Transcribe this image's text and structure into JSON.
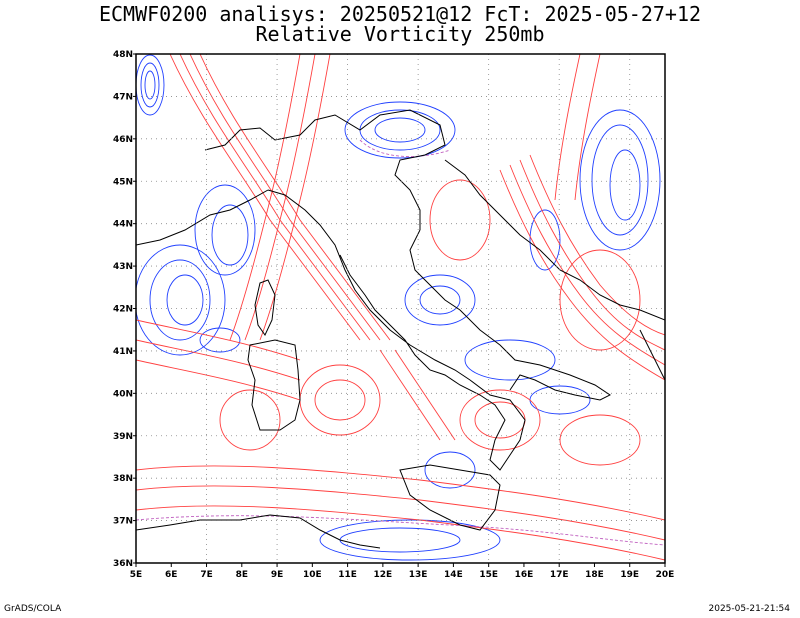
{
  "title": {
    "line1": "ECMWF0200 analisys: 20250521@12 FcT: 2025-05-27+12",
    "line2": "Relative Vorticity 250mb"
  },
  "footer": {
    "left": "GrADS/COLA",
    "right": "2025-05-21-21:54"
  },
  "map": {
    "lon_labels": [
      "5E",
      "6E",
      "7E",
      "8E",
      "9E",
      "10E",
      "11E",
      "12E",
      "13E",
      "14E",
      "15E",
      "16E",
      "17E",
      "18E",
      "19E",
      "20E"
    ],
    "lat_labels": [
      "48N",
      "47N",
      "46N",
      "45N",
      "44N",
      "43N",
      "42N",
      "41N",
      "40N",
      "39N",
      "38N",
      "37N",
      "36N"
    ],
    "colors": {
      "positive": "#ff4040",
      "negative": "#2040ff",
      "zero": "#c060c0",
      "coast": "#000000",
      "grid": "#888888"
    }
  }
}
